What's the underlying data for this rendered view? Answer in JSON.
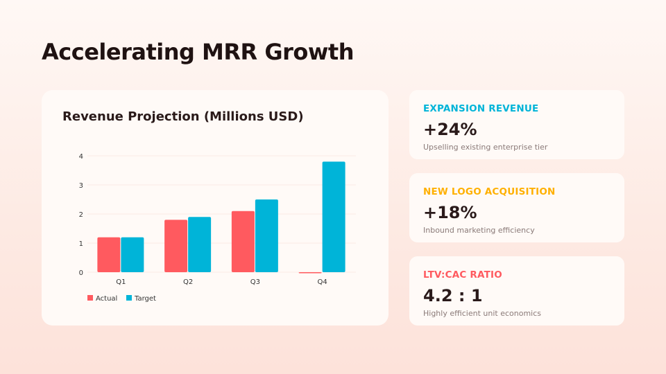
{
  "title": "Accelerating MRR Growth",
  "chart_data": {
    "type": "bar",
    "title": "Revenue Projection (Millions USD)",
    "categories": [
      "Q1",
      "Q2",
      "Q3",
      "Q4"
    ],
    "series": [
      {
        "name": "Actual",
        "values": [
          1.2,
          1.8,
          2.1,
          0
        ],
        "color": "#ff5a5f"
      },
      {
        "name": "Target",
        "values": [
          1.2,
          1.9,
          2.5,
          3.8
        ],
        "color": "#00b4d8"
      }
    ],
    "ylim": [
      0,
      4
    ],
    "yticks": [
      "0",
      "1",
      "2",
      "3",
      "4"
    ],
    "grid": true,
    "legend": "bottom-left"
  },
  "kpis": [
    {
      "label": "EXPANSION REVENUE",
      "value": "+24%",
      "sub": "Upselling existing enterprise tier",
      "color": "#00b4d8"
    },
    {
      "label": "NEW LOGO ACQUISITION",
      "value": "+18%",
      "sub": "Inbound marketing efficiency",
      "color": "#ffb000"
    },
    {
      "label": "LTV:CAC RATIO",
      "value": "4.2 : 1",
      "sub": "Highly efficient unit economics",
      "color": "#ff5a5f"
    }
  ]
}
